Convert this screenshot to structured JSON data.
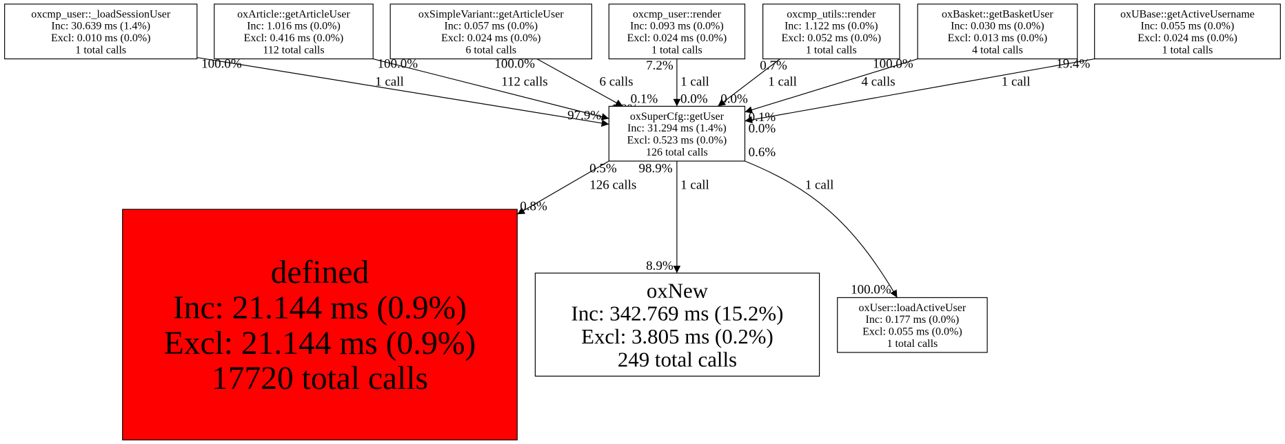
{
  "nodes": [
    {
      "id": "n1",
      "lines": [
        "oxcmp_user::_loadSessionUser",
        "Inc: 30.639 ms (1.4%)",
        "Excl: 0.010 ms (0.0%)",
        "1 total calls"
      ],
      "fill": "#ffffff"
    },
    {
      "id": "n2",
      "lines": [
        "oxArticle::getArticleUser",
        "Inc: 1.016 ms (0.0%)",
        "Excl: 0.416 ms (0.0%)",
        "112 total calls"
      ],
      "fill": "#ffffff"
    },
    {
      "id": "n3",
      "lines": [
        "oxSimpleVariant::getArticleUser",
        "Inc: 0.057 ms (0.0%)",
        "Excl: 0.024 ms (0.0%)",
        "6 total calls"
      ],
      "fill": "#ffffff"
    },
    {
      "id": "n4",
      "lines": [
        "oxcmp_user::render",
        "Inc: 0.093 ms (0.0%)",
        "Excl: 0.024 ms (0.0%)",
        "1 total calls"
      ],
      "fill": "#ffffff"
    },
    {
      "id": "n5",
      "lines": [
        "oxcmp_utils::render",
        "Inc: 1.122 ms (0.0%)",
        "Excl: 0.052 ms (0.0%)",
        "1 total calls"
      ],
      "fill": "#ffffff"
    },
    {
      "id": "n6",
      "lines": [
        "oxBasket::getBasketUser",
        "Inc: 0.030 ms (0.0%)",
        "Excl: 0.013 ms (0.0%)",
        "4 total calls"
      ],
      "fill": "#ffffff"
    },
    {
      "id": "n7",
      "lines": [
        "oxUBase::getActiveUsername",
        "Inc: 0.055 ms (0.0%)",
        "Excl: 0.024 ms (0.0%)",
        "1 total calls"
      ],
      "fill": "#ffffff"
    },
    {
      "id": "center",
      "lines": [
        "oxSuperCfg::getUser",
        "Inc: 31.294 ms (1.4%)",
        "Excl: 0.523 ms (0.0%)",
        "126 total calls"
      ],
      "fill": "#ffffff"
    },
    {
      "id": "defined",
      "lines": [
        "defined",
        "Inc: 21.144 ms (0.9%)",
        "Excl: 21.144 ms (0.9%)",
        "17720 total calls"
      ],
      "fill": "#ff0000"
    },
    {
      "id": "oxnew",
      "lines": [
        "oxNew",
        "Inc: 342.769 ms (15.2%)",
        "Excl: 3.805 ms (0.2%)",
        "249 total calls"
      ],
      "fill": "#ffffff"
    },
    {
      "id": "loaduser",
      "lines": [
        "oxUser::loadActiveUser",
        "Inc: 0.177 ms (0.0%)",
        "Excl: 0.055 ms (0.0%)",
        "1 total calls"
      ],
      "fill": "#ffffff"
    }
  ],
  "edges": [
    {
      "from": "n1",
      "to": "center",
      "tail": "100.0%",
      "label": "1 call",
      "head": "97.9%"
    },
    {
      "from": "n2",
      "to": "center",
      "tail": "100.0%",
      "label": "112 calls",
      "head": "1.9%"
    },
    {
      "from": "n3",
      "to": "center",
      "tail": "100.0%",
      "label": "6 calls",
      "head": "0.1%"
    },
    {
      "from": "n4",
      "to": "center",
      "tail": "7.2%",
      "label": "1 call",
      "head": "0.0%"
    },
    {
      "from": "n5",
      "to": "center",
      "tail": "0.7%",
      "label": "1 call",
      "head": "0.0%"
    },
    {
      "from": "n6",
      "to": "center",
      "tail": "100.0%",
      "label": "4 calls",
      "head": "0.1%"
    },
    {
      "from": "n7",
      "to": "center",
      "tail": "19.4%",
      "label": "1 call",
      "head": "0.0%"
    },
    {
      "from": "center",
      "to": "defined",
      "tail": "0.5%",
      "label": "126 calls",
      "head": "0.8%"
    },
    {
      "from": "center",
      "to": "oxnew",
      "tail": "98.9%",
      "label": "1 call",
      "head": "8.9%"
    },
    {
      "from": "center",
      "to": "loaduser",
      "tail": "0.6%",
      "label": "1 call",
      "head": "100.0%"
    }
  ]
}
